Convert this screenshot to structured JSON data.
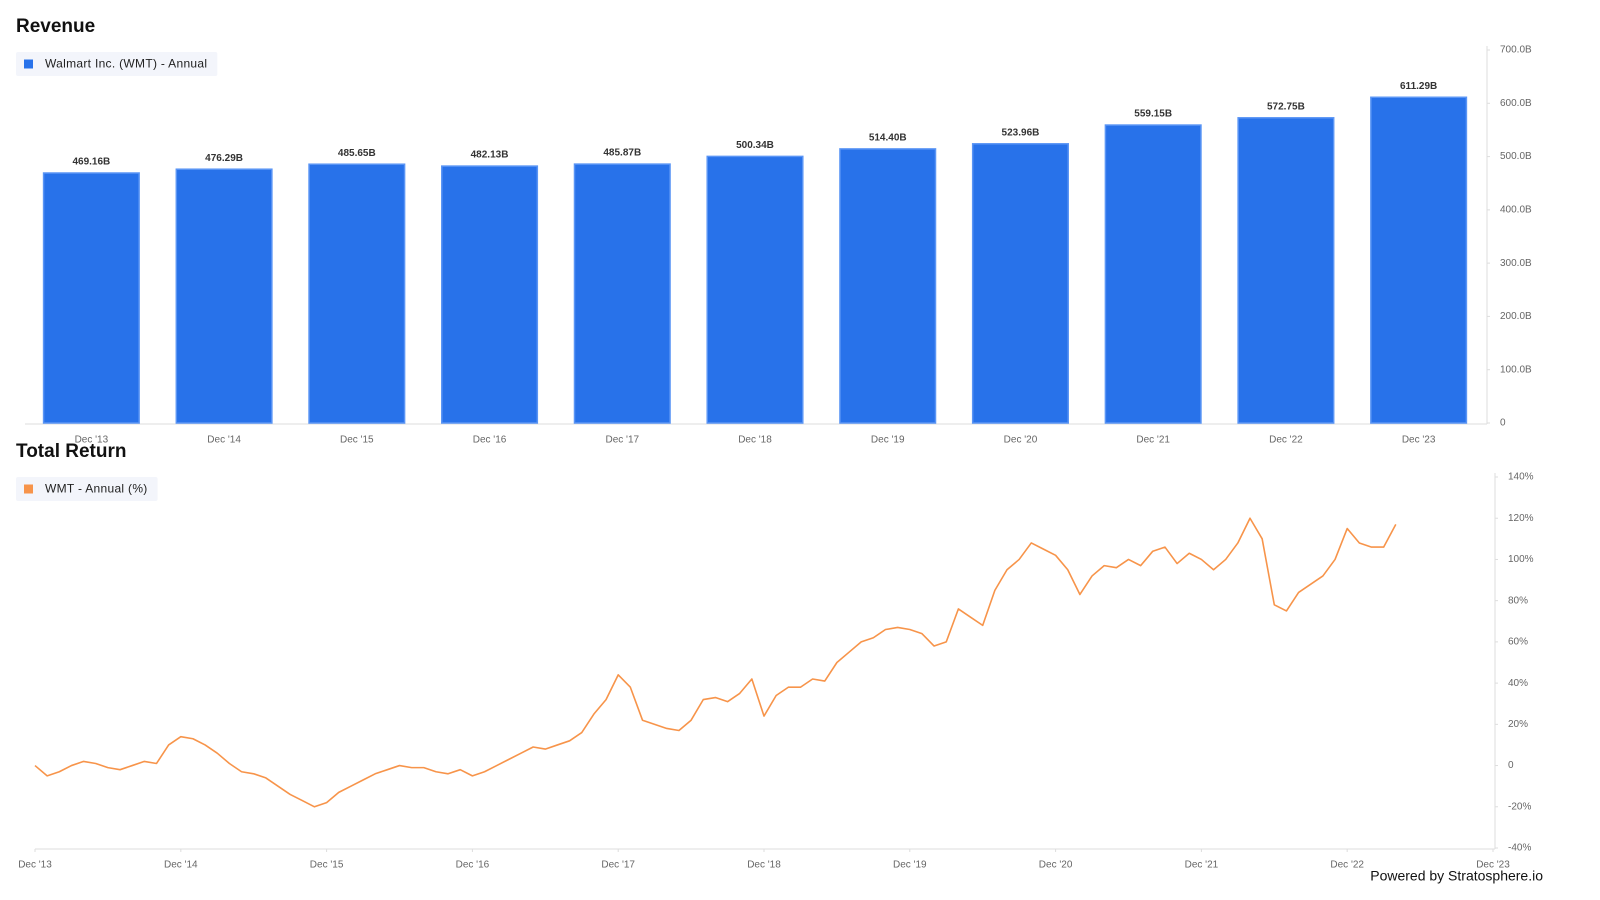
{
  "chart_data": [
    {
      "type": "bar",
      "title": "Revenue",
      "categories": [
        "Dec '13",
        "Dec '14",
        "Dec '15",
        "Dec '16",
        "Dec '17",
        "Dec '18",
        "Dec '19",
        "Dec '20",
        "Dec '21",
        "Dec '22",
        "Dec '23"
      ],
      "series": [
        {
          "name": "Walmart Inc. (WMT) - Annual",
          "color": "#2872ea",
          "values": [
            469.16,
            476.29,
            485.65,
            482.13,
            485.87,
            500.34,
            514.4,
            523.96,
            559.15,
            572.75,
            611.29
          ],
          "value_labels": [
            "469.16B",
            "476.29B",
            "485.65B",
            "482.13B",
            "485.87B",
            "500.34B",
            "514.40B",
            "523.96B",
            "559.15B",
            "572.75B",
            "611.29B"
          ]
        }
      ],
      "ylim": [
        0,
        700
      ],
      "yticks": [
        0,
        {
          "value": 100,
          "label": "100.0B"
        },
        {
          "value": 200,
          "label": "200.0B"
        },
        {
          "value": 300,
          "label": "300.0B"
        },
        {
          "value": 400,
          "label": "400.0B"
        },
        {
          "value": 500,
          "label": "500.0B"
        },
        {
          "value": 600,
          "label": "600.0B"
        },
        {
          "value": 700,
          "label": "700.0B"
        }
      ],
      "grid": false
    },
    {
      "type": "line",
      "title": "Total Return",
      "x": [
        0,
        1,
        2,
        3,
        4,
        5,
        6,
        7,
        8,
        9,
        10,
        11,
        12,
        13,
        14,
        15,
        16,
        17,
        18,
        19,
        20,
        21,
        22,
        23,
        24,
        25,
        26,
        27,
        28,
        29,
        30,
        31,
        32,
        33,
        34,
        35,
        36,
        37,
        38,
        39,
        40,
        41,
        42,
        43,
        44,
        45,
        46,
        47,
        48,
        49,
        50,
        51,
        52,
        53,
        54,
        55,
        56,
        57,
        58,
        59,
        60,
        61,
        62,
        63,
        64,
        65,
        66,
        67,
        68,
        69,
        70,
        71,
        72,
        73,
        74,
        75,
        76,
        77,
        78,
        79,
        80,
        81,
        82,
        83,
        84,
        85,
        86,
        87,
        88,
        89,
        90,
        91,
        92,
        93,
        94,
        95,
        96,
        97,
        98,
        99,
        100,
        101,
        102,
        103,
        104,
        105,
        106,
        107,
        108,
        109,
        110,
        111,
        112
      ],
      "series": [
        {
          "name": "WMT - Annual (%)",
          "color": "#f7944a",
          "values": [
            0,
            -5,
            -3,
            0,
            2,
            1,
            -1,
            -2,
            0,
            2,
            1,
            10,
            14,
            13,
            10,
            6,
            1,
            -3,
            -4,
            -6,
            -10,
            -14,
            -17,
            -20,
            -18,
            -13,
            -10,
            -7,
            -4,
            -2,
            0,
            -1,
            -1,
            -3,
            -4,
            -2,
            -5,
            -3,
            0,
            3,
            6,
            9,
            8,
            10,
            12,
            16,
            25,
            32,
            44,
            38,
            22,
            20,
            18,
            17,
            22,
            32,
            33,
            31,
            35,
            42,
            24,
            34,
            38,
            38,
            42,
            41,
            50,
            55,
            60,
            62,
            66,
            67,
            66,
            64,
            58,
            60,
            76,
            72,
            68,
            85,
            95,
            100,
            108,
            105,
            102,
            95,
            83,
            92,
            97,
            96,
            100,
            97,
            104,
            106,
            98,
            103,
            100,
            95,
            100,
            108,
            120,
            110,
            78,
            75,
            84,
            88,
            92,
            100,
            115,
            108,
            106,
            106,
            117
          ]
        }
      ],
      "xlim": [
        0,
        120
      ],
      "xticks": [
        {
          "value": 0,
          "label": "Dec '13"
        },
        {
          "value": 12,
          "label": "Dec '14"
        },
        {
          "value": 24,
          "label": "Dec '15"
        },
        {
          "value": 36,
          "label": "Dec '16"
        },
        {
          "value": 48,
          "label": "Dec '17"
        },
        {
          "value": 60,
          "label": "Dec '18"
        },
        {
          "value": 72,
          "label": "Dec '19"
        },
        {
          "value": 84,
          "label": "Dec '20"
        },
        {
          "value": 96,
          "label": "Dec '21"
        },
        {
          "value": 108,
          "label": "Dec '22"
        },
        {
          "value": 120,
          "label": "Dec '23"
        }
      ],
      "ylim": [
        -40,
        140
      ],
      "yticks": [
        {
          "value": -40,
          "label": "-40%"
        },
        {
          "value": -20,
          "label": "-20%"
        },
        0,
        {
          "value": 20,
          "label": "20%"
        },
        {
          "value": 40,
          "label": "40%"
        },
        {
          "value": 60,
          "label": "60%"
        },
        {
          "value": 80,
          "label": "80%"
        },
        {
          "value": 100,
          "label": "100%"
        },
        {
          "value": 120,
          "label": "120%"
        },
        {
          "value": 140,
          "label": "140%"
        }
      ],
      "grid": false
    }
  ],
  "footer": "Powered by Stratosphere.io"
}
